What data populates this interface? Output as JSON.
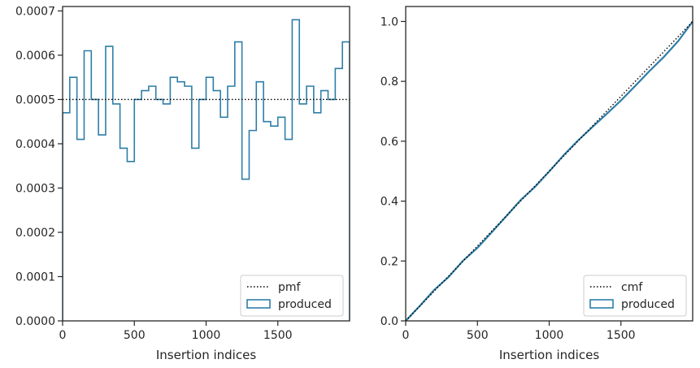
{
  "chart_data": [
    {
      "type": "histogram",
      "title": "",
      "xlabel": "Insertion indices",
      "ylabel": "",
      "xlim": [
        0,
        2000
      ],
      "ylim": [
        0,
        0.00071
      ],
      "xticks": [
        "0",
        "500",
        "1000",
        "1500"
      ],
      "xtick_values": [
        0,
        500,
        1000,
        1500
      ],
      "yticks": [
        "0.0000",
        "0.0001",
        "0.0002",
        "0.0003",
        "0.0004",
        "0.0005",
        "0.0006",
        "0.0007"
      ],
      "ytick_values": [
        0,
        0.0001,
        0.0002,
        0.0003,
        0.0004,
        0.0005,
        0.0006,
        0.0007
      ],
      "grid": false,
      "legend_position": "bottom-right",
      "legend": [
        {
          "label": "pmf",
          "style": "dotted-line",
          "color": "#000000"
        },
        {
          "label": "produced",
          "style": "step-box",
          "color": "#2e7ea8"
        }
      ],
      "series": [
        {
          "name": "produced",
          "bin_width": 50,
          "bin_start": 0,
          "values": [
            0.00047,
            0.00055,
            0.00041,
            0.00061,
            0.0005,
            0.00042,
            0.00062,
            0.00049,
            0.00039,
            0.00036,
            0.0005,
            0.00052,
            0.00053,
            0.0005,
            0.00049,
            0.00055,
            0.00054,
            0.00053,
            0.00039,
            0.0005,
            0.00055,
            0.00052,
            0.00046,
            0.00053,
            0.00063,
            0.00032,
            0.00043,
            0.00054,
            0.00045,
            0.00044,
            0.00046,
            0.00041,
            0.00068,
            0.00049,
            0.00053,
            0.00047,
            0.00052,
            0.0005,
            0.00057,
            0.00063
          ]
        },
        {
          "name": "pmf",
          "value": 0.0005
        }
      ]
    },
    {
      "type": "line",
      "title": "",
      "xlabel": "Insertion indices",
      "ylabel": "",
      "xlim": [
        0,
        2000
      ],
      "ylim": [
        0,
        1.05
      ],
      "xticks": [
        "0",
        "500",
        "1000",
        "1500"
      ],
      "xtick_values": [
        0,
        500,
        1000,
        1500
      ],
      "yticks": [
        "0.0",
        "0.2",
        "0.4",
        "0.6",
        "0.8",
        "1.0"
      ],
      "ytick_values": [
        0,
        0.2,
        0.4,
        0.6,
        0.8,
        1.0
      ],
      "grid": false,
      "legend_position": "bottom-right",
      "legend": [
        {
          "label": "cmf",
          "style": "dotted-line",
          "color": "#000000"
        },
        {
          "label": "produced",
          "style": "step-box",
          "color": "#2e7ea8"
        }
      ],
      "series": [
        {
          "name": "cmf",
          "x": [
            0,
            2000
          ],
          "y": [
            0,
            1.0
          ]
        },
        {
          "name": "produced",
          "x": [
            0,
            100,
            200,
            300,
            400,
            500,
            600,
            700,
            800,
            900,
            1000,
            1100,
            1200,
            1300,
            1400,
            1500,
            1600,
            1700,
            1800,
            1900,
            2000
          ],
          "y": [
            0,
            0.051,
            0.104,
            0.147,
            0.201,
            0.244,
            0.296,
            0.349,
            0.403,
            0.447,
            0.499,
            0.553,
            0.602,
            0.647,
            0.691,
            0.736,
            0.785,
            0.835,
            0.882,
            0.935,
            1.0
          ]
        }
      ]
    }
  ]
}
